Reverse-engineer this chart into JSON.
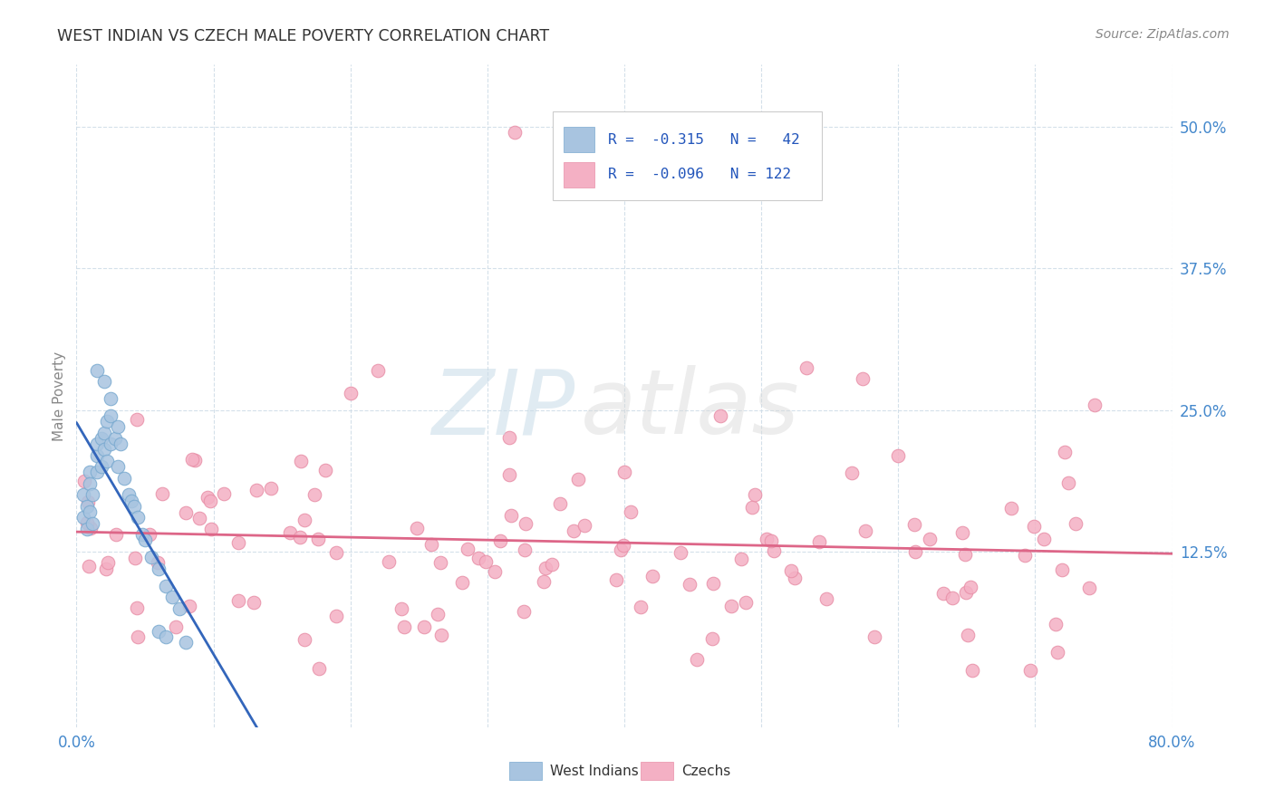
{
  "title": "WEST INDIAN VS CZECH MALE POVERTY CORRELATION CHART",
  "source": "Source: ZipAtlas.com",
  "ylabel": "Male Poverty",
  "ytick_labels": [
    "12.5%",
    "25.0%",
    "37.5%",
    "50.0%"
  ],
  "ytick_values": [
    0.125,
    0.25,
    0.375,
    0.5
  ],
  "xlim": [
    0.0,
    0.8
  ],
  "ylim": [
    -0.03,
    0.555
  ],
  "legend_text_blue": "R =  -0.315   N =  42",
  "legend_text_pink": "R = -0.096   N = 122",
  "blue_color": "#a8c4e0",
  "blue_edge_color": "#7aaad0",
  "pink_color": "#f4b0c4",
  "pink_edge_color": "#e890a8",
  "blue_line_color": "#3366bb",
  "pink_line_color": "#dd6688",
  "legend_blue_label": "West Indians",
  "legend_pink_label": "Czechs",
  "watermark_zip_color": "#c8dce8",
  "watermark_atlas_color": "#d8d8d8",
  "grid_color": "#d0dde8",
  "title_color": "#333333",
  "source_color": "#888888",
  "tick_color": "#4488cc",
  "ylabel_color": "#888888"
}
